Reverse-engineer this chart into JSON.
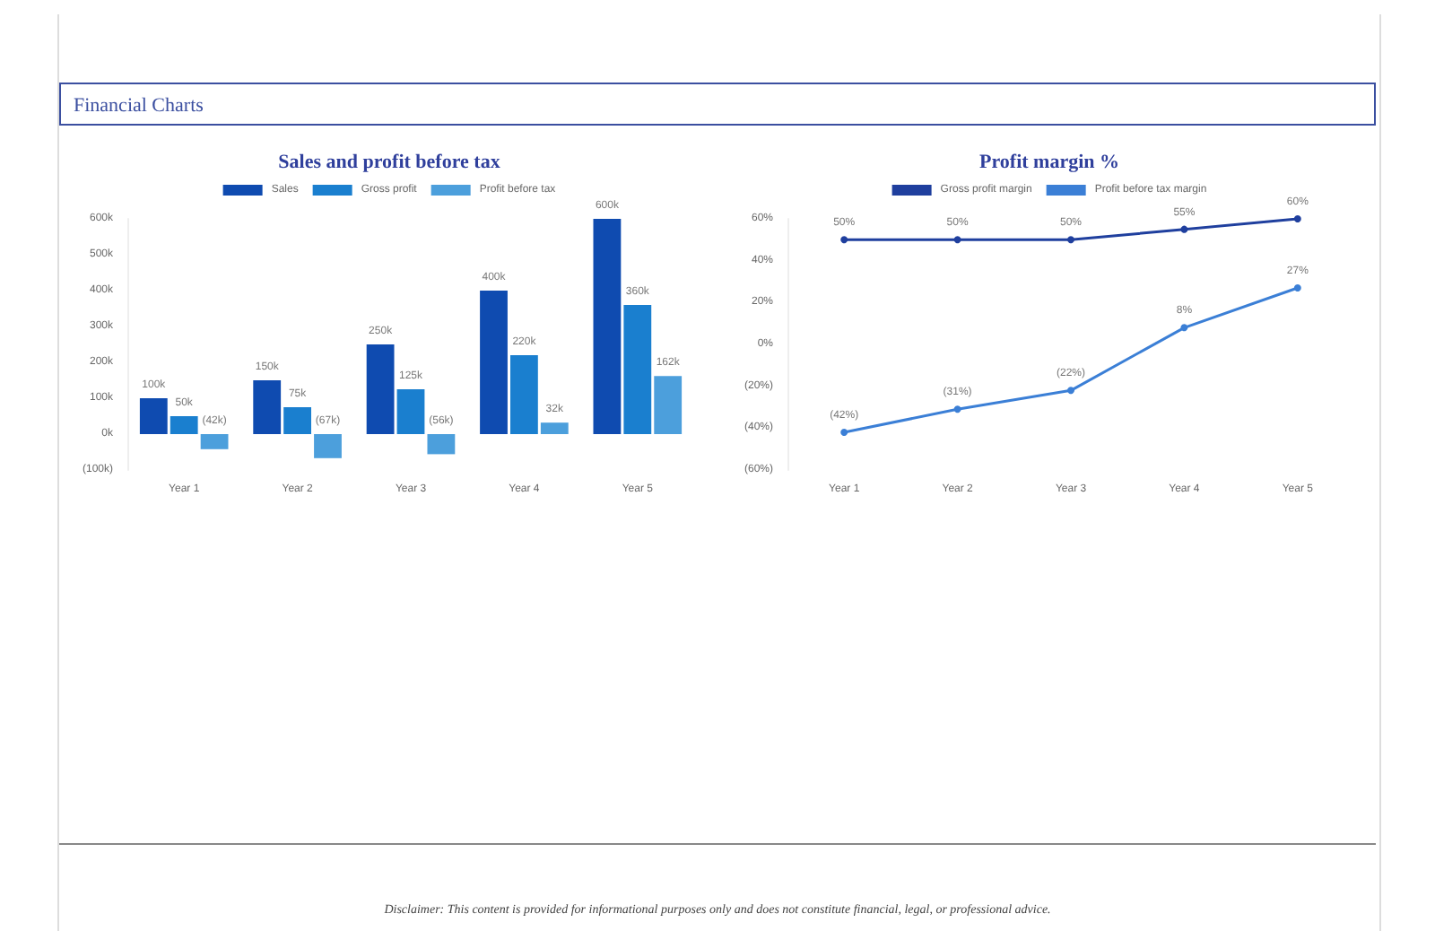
{
  "chart_data": [
    {
      "type": "bar",
      "title": "Sales and profit before tax",
      "annotations": [
        "Financial Charts",
        "Disclaimer: This content is provided for informational purposes only and does not constitute financial, legal, or professional advice."
      ],
      "categories": [
        "Year 1",
        "Year 2",
        "Year 3",
        "Year 4",
        "Year 5"
      ],
      "series": [
        {
          "name": "Sales",
          "color": "#0f4bb0",
          "values": [
            100,
            150,
            250,
            400,
            600
          ],
          "value_labels": [
            "100k",
            "150k",
            "250k",
            "400k",
            "600k"
          ]
        },
        {
          "name": "Gross profit",
          "color": "#1a7fcf",
          "values": [
            50,
            75,
            125,
            220,
            360
          ],
          "value_labels": [
            "50k",
            "75k",
            "125k",
            "220k",
            "360k"
          ]
        },
        {
          "name": "Profit before tax",
          "color": "#4c9fdc",
          "values": [
            -42,
            -67,
            -56,
            32,
            162
          ],
          "value_labels": [
            "(42k)",
            "(67k)",
            "(56k)",
            "32k",
            "162k"
          ]
        }
      ],
      "ylim": [
        -100,
        600
      ],
      "yticks": [
        {
          "value": -100,
          "label": "(100k)"
        },
        {
          "value": 0,
          "label": "0k"
        },
        {
          "value": 100,
          "label": "100k"
        },
        {
          "value": 200,
          "label": "200k"
        },
        {
          "value": 300,
          "label": "300k"
        },
        {
          "value": 400,
          "label": "400k"
        },
        {
          "value": 500,
          "label": "500k"
        },
        {
          "value": 600,
          "label": "600k"
        }
      ],
      "grid": false,
      "legend": "top"
    },
    {
      "type": "line",
      "title": "Profit margin %",
      "categories": [
        "Year 1",
        "Year 2",
        "Year 3",
        "Year 4",
        "Year 5"
      ],
      "series": [
        {
          "name": "Gross profit margin",
          "color": "#1f3f9e",
          "values": [
            50,
            50,
            50,
            55,
            60
          ],
          "value_labels": [
            "50%",
            "50%",
            "50%",
            "55%",
            "60%"
          ]
        },
        {
          "name": "Profit before tax margin",
          "color": "#3b7fd6",
          "values": [
            -42,
            -31,
            -22,
            8,
            27
          ],
          "value_labels": [
            "(42%)",
            "(31%)",
            "(22%)",
            "8%",
            "27%"
          ]
        }
      ],
      "ylim": [
        -60,
        60
      ],
      "yticks": [
        {
          "value": -60,
          "label": "(60%)"
        },
        {
          "value": -40,
          "label": "(40%)"
        },
        {
          "value": -20,
          "label": "(20%)"
        },
        {
          "value": 0,
          "label": "0%"
        },
        {
          "value": 20,
          "label": "20%"
        },
        {
          "value": 40,
          "label": "40%"
        },
        {
          "value": 60,
          "label": "60%"
        }
      ],
      "grid": false,
      "legend": "top",
      "marker": "circle",
      "line_style": "solid"
    }
  ]
}
